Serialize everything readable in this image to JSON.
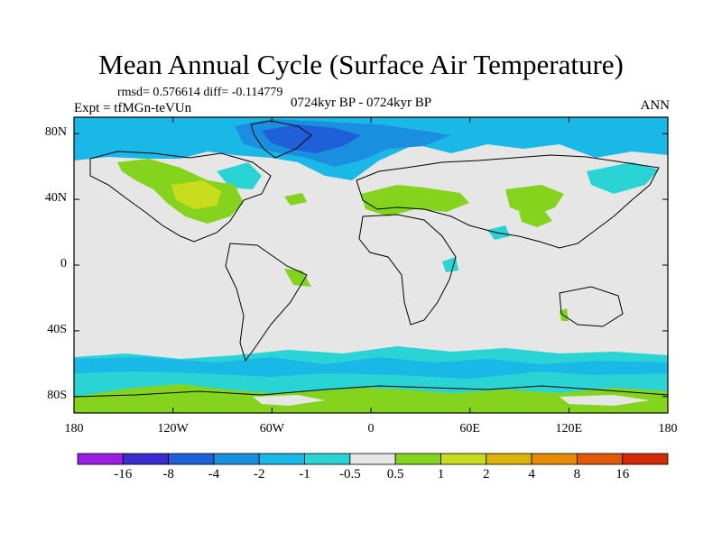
{
  "header": {
    "title": "Mean Annual Cycle (Surface Air Temperature)",
    "stats": "rmsd= 0.576614 diff= -0.114779",
    "period": "0724kyr BP - 0724kyr BP",
    "experiment": "Expt = tfMGn-teVUn",
    "season": "ANN"
  },
  "map": {
    "lat_ticks": [
      "80N",
      "40N",
      "0",
      "40S",
      "80S"
    ],
    "lat_values": [
      80,
      40,
      0,
      -40,
      -80
    ],
    "lon_ticks": [
      "180",
      "120W",
      "60W",
      "0",
      "60E",
      "120E",
      "180"
    ],
    "lon_values": [
      -180,
      -120,
      -60,
      0,
      60,
      120,
      180
    ],
    "lon_range": [
      -180,
      180
    ],
    "lat_range": [
      -90,
      90
    ],
    "background_color": "#e6e6e6"
  },
  "colorbar": {
    "labels": [
      "-16",
      "-8",
      "-4",
      "-2",
      "-1",
      "-0.5",
      "0.5",
      "1",
      "2",
      "4",
      "8",
      "16"
    ],
    "colors": [
      "#9a1ee6",
      "#3c2bd0",
      "#1f5fd8",
      "#1a8fe0",
      "#1ab8e6",
      "#2ad4d4",
      "#e6e6e6",
      "#84d41e",
      "#c8dc1e",
      "#dcb40a",
      "#e68a00",
      "#e05a0a",
      "#d42a0a"
    ]
  }
}
